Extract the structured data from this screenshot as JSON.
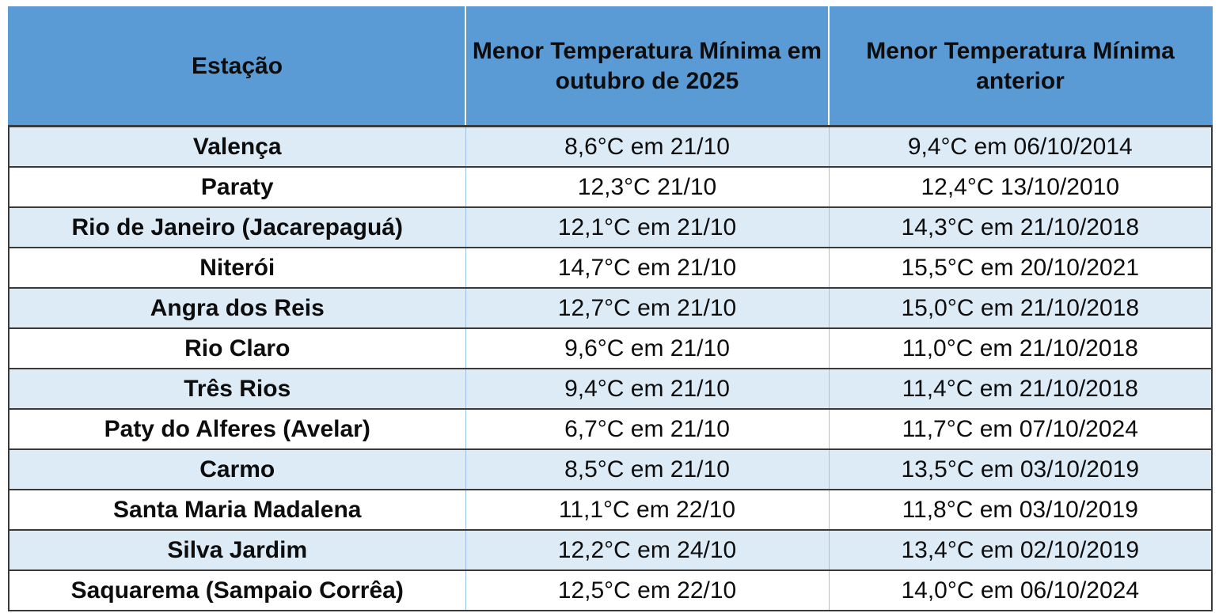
{
  "table": {
    "headers": [
      "Estação",
      "Menor Temperatura Mínima em outubro de 2025",
      "Menor Temperatura Mínima anterior"
    ],
    "rows": [
      {
        "station": "Valença",
        "min_oct_2025": "8,6°C em 21/10",
        "previous_min": "9,4°C em 06/10/2014"
      },
      {
        "station": "Paraty",
        "min_oct_2025": "12,3°C 21/10",
        "previous_min": "12,4°C 13/10/2010"
      },
      {
        "station": "Rio de Janeiro (Jacarepaguá)",
        "min_oct_2025": "12,1°C em 21/10",
        "previous_min": "14,3°C em 21/10/2018"
      },
      {
        "station": "Niterói",
        "min_oct_2025": "14,7°C em 21/10",
        "previous_min": "15,5°C em 20/10/2021"
      },
      {
        "station": "Angra dos Reis",
        "min_oct_2025": "12,7°C em 21/10",
        "previous_min": "15,0°C em 21/10/2018"
      },
      {
        "station": "Rio Claro",
        "min_oct_2025": "9,6°C em 21/10",
        "previous_min": "11,0°C em 21/10/2018"
      },
      {
        "station": "Três Rios",
        "min_oct_2025": "9,4°C em 21/10",
        "previous_min": "11,4°C em 21/10/2018"
      },
      {
        "station": "Paty do Alferes (Avelar)",
        "min_oct_2025": "6,7°C em 21/10",
        "previous_min": "11,7°C em 07/10/2024"
      },
      {
        "station": "Carmo",
        "min_oct_2025": "8,5°C em 21/10",
        "previous_min": "13,5°C em 03/10/2019"
      },
      {
        "station": "Santa Maria Madalena",
        "min_oct_2025": "11,1°C em 22/10",
        "previous_min": "11,8°C em 03/10/2019"
      },
      {
        "station": "Silva Jardim",
        "min_oct_2025": "12,2°C em 24/10",
        "previous_min": "13,4°C em 02/10/2019"
      },
      {
        "station": "Saquarema (Sampaio Corrêa)",
        "min_oct_2025": "12,5°C em 22/10",
        "previous_min": "14,0°C em 06/10/2024"
      }
    ]
  },
  "colors": {
    "header_bg": "#5b9bd5",
    "band_bg": "#ddebf7",
    "row_bg": "#ffffff",
    "border": "#3a3a3a"
  }
}
